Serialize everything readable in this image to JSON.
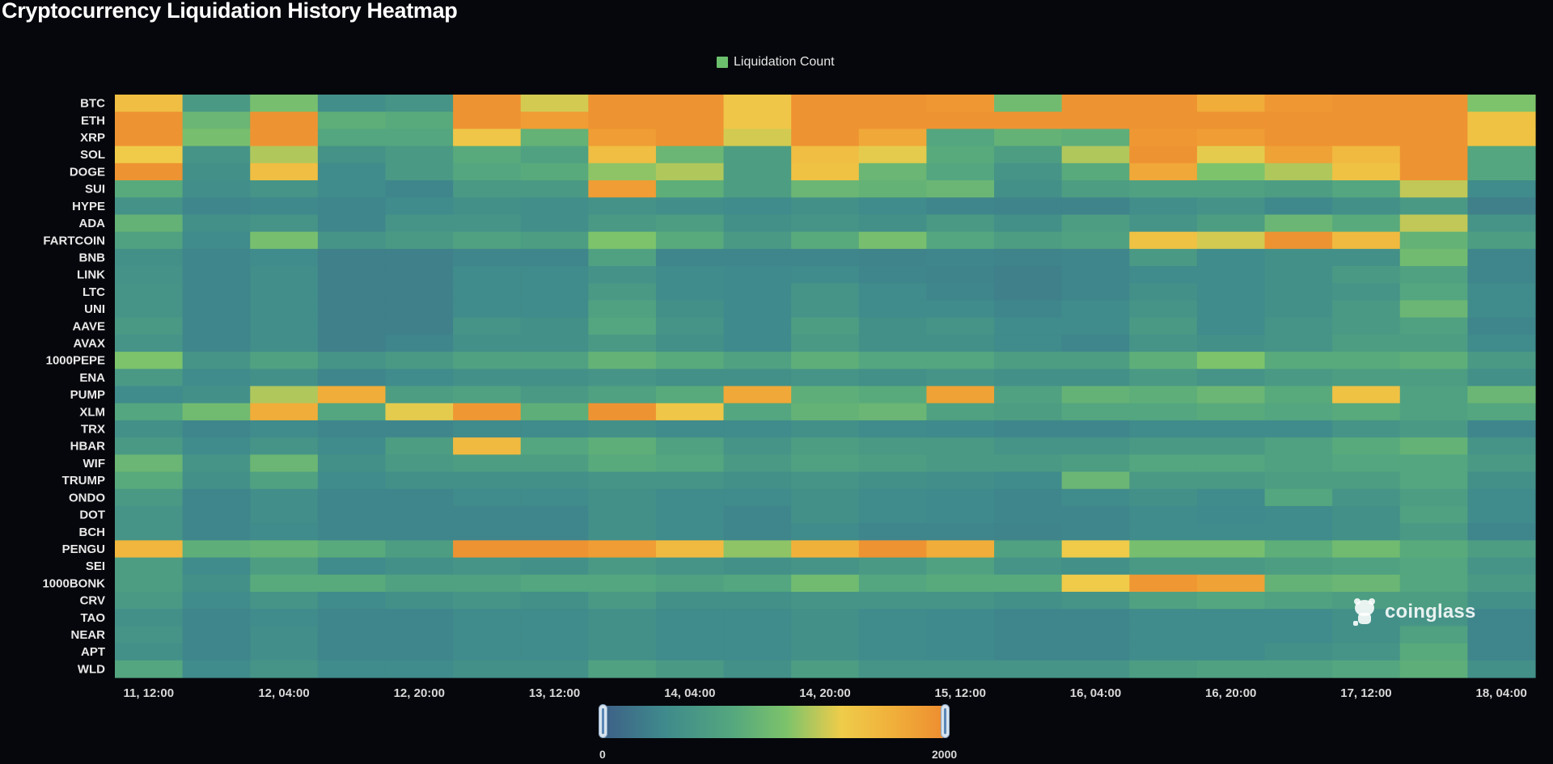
{
  "title": "Cryptocurrency Liquidation History Heatmap",
  "legend": {
    "label": "Liquidation Count",
    "color": "#6cbf6c"
  },
  "watermark": "coinglass",
  "visual_map": {
    "min_label": "0",
    "max_label": "2000"
  },
  "chart_data": {
    "type": "heatmap",
    "title": "Cryptocurrency Liquidation History Heatmap",
    "series_name": "Liquidation Count",
    "value_range": [
      0,
      2000
    ],
    "color_scale": [
      "#3d6087",
      "#3f8a8c",
      "#54a77e",
      "#7dc36b",
      "#efcc4a",
      "#f0b03a",
      "#ee8e30"
    ],
    "x_tick_labels": [
      "11, 12:00",
      "12, 04:00",
      "12, 20:00",
      "13, 12:00",
      "14, 04:00",
      "14, 20:00",
      "15, 12:00",
      "16, 04:00",
      "16, 20:00",
      "17, 12:00",
      "18, 04:00"
    ],
    "y_categories": [
      "BTC",
      "ETH",
      "XRP",
      "SOL",
      "DOGE",
      "SUI",
      "HYPE",
      "ADA",
      "FARTCOIN",
      "BNB",
      "LINK",
      "LTC",
      "UNI",
      "AAVE",
      "AVAX",
      "1000PEPE",
      "ENA",
      "PUMP",
      "XLM",
      "TRX",
      "HBAR",
      "WIF",
      "TRUMP",
      "ONDO",
      "DOT",
      "BCH",
      "PENGU",
      "SEI",
      "1000BONK",
      "CRV",
      "TAO",
      "NEAR",
      "APT",
      "WLD"
    ],
    "values": [
      [
        1500,
        500,
        950,
        380,
        450,
        1950,
        1250,
        1950,
        1950,
        1400,
        1950,
        1950,
        1900,
        900,
        1950,
        1950,
        1700,
        1900,
        1950,
        1950,
        1000
      ],
      [
        1950,
        850,
        1950,
        750,
        700,
        1950,
        1850,
        1950,
        1950,
        1400,
        1950,
        1950,
        1950,
        1950,
        1950,
        1950,
        1950,
        1950,
        1950,
        1950,
        1450
      ],
      [
        1950,
        950,
        1950,
        650,
        650,
        1400,
        800,
        1850,
        1950,
        1250,
        1950,
        1750,
        650,
        800,
        750,
        1900,
        1850,
        1950,
        1950,
        1950,
        1450
      ],
      [
        1350,
        450,
        1150,
        420,
        500,
        700,
        600,
        1500,
        850,
        550,
        1500,
        1300,
        700,
        550,
        1150,
        1950,
        1300,
        1800,
        1550,
        1950,
        650
      ],
      [
        1950,
        400,
        1500,
        350,
        500,
        650,
        700,
        1050,
        1150,
        550,
        1450,
        850,
        650,
        450,
        700,
        1750,
        1000,
        1150,
        1450,
        1950,
        650
      ],
      [
        700,
        380,
        450,
        350,
        300,
        500,
        500,
        1850,
        750,
        550,
        850,
        800,
        850,
        400,
        550,
        600,
        600,
        550,
        650,
        1200,
        350
      ],
      [
        420,
        300,
        320,
        300,
        350,
        400,
        380,
        420,
        380,
        350,
        400,
        350,
        300,
        280,
        280,
        380,
        420,
        320,
        400,
        500,
        250
      ],
      [
        800,
        400,
        450,
        300,
        450,
        450,
        380,
        500,
        550,
        400,
        450,
        400,
        500,
        400,
        550,
        450,
        550,
        850,
        700,
        1200,
        450
      ],
      [
        600,
        350,
        950,
        450,
        500,
        600,
        550,
        1000,
        700,
        500,
        700,
        950,
        650,
        550,
        600,
        1450,
        1250,
        1950,
        1550,
        800,
        550
      ],
      [
        400,
        300,
        350,
        250,
        250,
        300,
        300,
        600,
        300,
        300,
        300,
        280,
        300,
        280,
        300,
        500,
        350,
        400,
        400,
        900,
        300
      ],
      [
        420,
        300,
        380,
        250,
        250,
        350,
        350,
        420,
        350,
        330,
        350,
        300,
        280,
        250,
        300,
        350,
        350,
        400,
        500,
        600,
        300
      ],
      [
        450,
        300,
        380,
        250,
        250,
        350,
        350,
        500,
        350,
        330,
        450,
        350,
        300,
        250,
        300,
        400,
        350,
        400,
        450,
        650,
        350
      ],
      [
        450,
        300,
        380,
        250,
        250,
        350,
        350,
        600,
        400,
        330,
        450,
        350,
        350,
        300,
        350,
        450,
        350,
        400,
        500,
        850,
        350
      ],
      [
        500,
        300,
        380,
        250,
        250,
        450,
        400,
        650,
        450,
        330,
        550,
        400,
        450,
        350,
        350,
        500,
        350,
        450,
        500,
        600,
        300
      ],
      [
        450,
        300,
        380,
        250,
        300,
        400,
        400,
        500,
        400,
        330,
        500,
        400,
        400,
        350,
        300,
        450,
        400,
        450,
        550,
        550,
        350
      ],
      [
        1000,
        450,
        600,
        450,
        500,
        600,
        600,
        800,
        700,
        600,
        750,
        650,
        650,
        550,
        550,
        750,
        1000,
        700,
        700,
        750,
        500
      ],
      [
        500,
        350,
        400,
        300,
        350,
        400,
        400,
        450,
        400,
        400,
        450,
        400,
        450,
        400,
        400,
        500,
        450,
        500,
        550,
        550,
        400
      ],
      [
        350,
        400,
        1150,
        1700,
        550,
        600,
        500,
        600,
        700,
        1750,
        750,
        700,
        1800,
        600,
        800,
        750,
        850,
        700,
        1450,
        600,
        850
      ],
      [
        650,
        900,
        1700,
        650,
        1300,
        1900,
        750,
        1950,
        1400,
        650,
        800,
        850,
        600,
        550,
        650,
        650,
        700,
        650,
        700,
        600,
        650
      ],
      [
        400,
        300,
        350,
        300,
        300,
        350,
        350,
        400,
        350,
        350,
        400,
        350,
        330,
        300,
        300,
        350,
        350,
        350,
        450,
        500,
        300
      ],
      [
        500,
        350,
        450,
        350,
        550,
        1550,
        650,
        750,
        600,
        450,
        550,
        500,
        500,
        450,
        450,
        500,
        500,
        600,
        700,
        800,
        450
      ],
      [
        850,
        450,
        850,
        400,
        500,
        550,
        550,
        700,
        650,
        500,
        600,
        550,
        500,
        500,
        550,
        650,
        650,
        600,
        650,
        650,
        500
      ],
      [
        700,
        400,
        600,
        350,
        400,
        400,
        400,
        450,
        450,
        400,
        450,
        400,
        380,
        350,
        850,
        500,
        500,
        550,
        550,
        650,
        400
      ],
      [
        500,
        300,
        380,
        300,
        300,
        350,
        350,
        400,
        350,
        350,
        400,
        350,
        330,
        300,
        350,
        400,
        350,
        650,
        450,
        550,
        350
      ],
      [
        450,
        300,
        380,
        300,
        300,
        300,
        300,
        400,
        350,
        300,
        400,
        350,
        330,
        300,
        300,
        350,
        330,
        350,
        400,
        600,
        350
      ],
      [
        450,
        300,
        350,
        300,
        300,
        300,
        300,
        400,
        350,
        300,
        350,
        300,
        300,
        280,
        300,
        350,
        350,
        350,
        400,
        500,
        300
      ],
      [
        1600,
        750,
        800,
        700,
        550,
        1950,
        1950,
        1850,
        1550,
        1050,
        1650,
        1950,
        1700,
        600,
        1350,
        950,
        950,
        750,
        900,
        700,
        550
      ],
      [
        550,
        350,
        550,
        350,
        400,
        450,
        400,
        500,
        450,
        400,
        450,
        500,
        600,
        450,
        400,
        500,
        500,
        550,
        600,
        650,
        450
      ],
      [
        550,
        400,
        700,
        700,
        600,
        600,
        650,
        650,
        600,
        650,
        900,
        650,
        700,
        700,
        1350,
        1900,
        1800,
        800,
        850,
        650,
        500
      ],
      [
        500,
        350,
        450,
        350,
        400,
        450,
        400,
        500,
        400,
        400,
        450,
        450,
        450,
        400,
        450,
        600,
        650,
        600,
        550,
        550,
        400
      ],
      [
        400,
        300,
        350,
        300,
        300,
        350,
        350,
        400,
        350,
        350,
        400,
        350,
        330,
        300,
        300,
        350,
        350,
        350,
        400,
        450,
        300
      ],
      [
        450,
        300,
        380,
        300,
        300,
        350,
        350,
        400,
        350,
        350,
        400,
        350,
        330,
        300,
        300,
        350,
        350,
        350,
        400,
        600,
        300
      ],
      [
        400,
        300,
        380,
        300,
        300,
        350,
        350,
        400,
        350,
        350,
        400,
        350,
        330,
        300,
        300,
        350,
        350,
        400,
        450,
        700,
        300
      ],
      [
        650,
        350,
        450,
        350,
        350,
        400,
        400,
        600,
        500,
        400,
        550,
        450,
        450,
        450,
        450,
        550,
        600,
        600,
        650,
        750,
        400
      ]
    ]
  }
}
